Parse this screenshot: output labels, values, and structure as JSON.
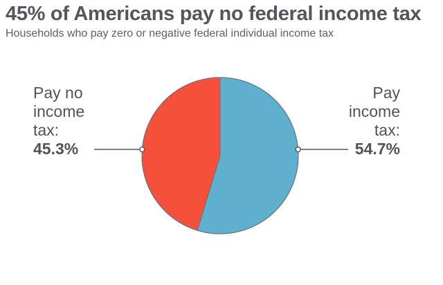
{
  "title": "45% of Americans pay no federal income tax",
  "subtitle": "Households who pay zero or negative federal individual income tax",
  "chart_data": {
    "type": "pie",
    "title": "45% of Americans pay no federal income tax",
    "subtitle": "Households who pay zero or negative federal individual income tax",
    "slices": [
      {
        "label_lines": [
          "Pay no",
          "income",
          "tax:"
        ],
        "value": 45.3,
        "value_label": "45.3%",
        "color": "#f4503a"
      },
      {
        "label_lines": [
          "Pay",
          "income",
          "tax:"
        ],
        "value": 54.7,
        "value_label": "54.7%",
        "color": "#5fafcf"
      }
    ]
  }
}
